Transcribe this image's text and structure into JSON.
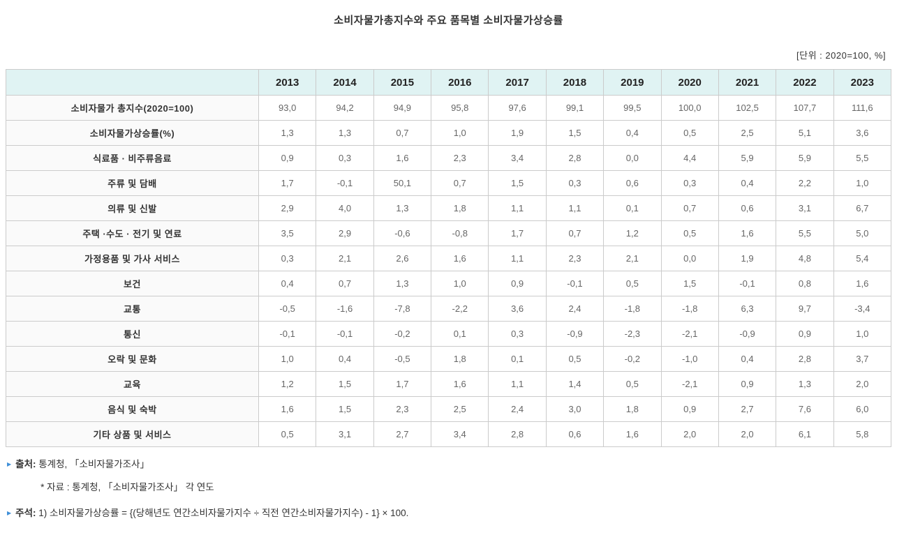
{
  "page": {
    "title": "소비자물가총지수와 주요 품목별 소비자물가상승률",
    "unit_label": "[단위 : 2020=100, %]"
  },
  "table": {
    "corner_label": "",
    "years": [
      "2013",
      "2014",
      "2015",
      "2016",
      "2017",
      "2018",
      "2019",
      "2020",
      "2021",
      "2022",
      "2023"
    ],
    "rows": [
      {
        "label": "소비자물가 총지수(2020=100)",
        "values": [
          "93,0",
          "94,2",
          "94,9",
          "95,8",
          "97,6",
          "99,1",
          "99,5",
          "100,0",
          "102,5",
          "107,7",
          "111,6"
        ]
      },
      {
        "label": "소비자물가상승률(%)",
        "values": [
          "1,3",
          "1,3",
          "0,7",
          "1,0",
          "1,9",
          "1,5",
          "0,4",
          "0,5",
          "2,5",
          "5,1",
          "3,6"
        ]
      },
      {
        "label": "식료품 · 비주류음료",
        "values": [
          "0,9",
          "0,3",
          "1,6",
          "2,3",
          "3,4",
          "2,8",
          "0,0",
          "4,4",
          "5,9",
          "5,9",
          "5,5"
        ]
      },
      {
        "label": "주류 및 담배",
        "values": [
          "1,7",
          "-0,1",
          "50,1",
          "0,7",
          "1,5",
          "0,3",
          "0,6",
          "0,3",
          "0,4",
          "2,2",
          "1,0"
        ]
      },
      {
        "label": "의류 및 신발",
        "values": [
          "2,9",
          "4,0",
          "1,3",
          "1,8",
          "1,1",
          "1,1",
          "0,1",
          "0,7",
          "0,6",
          "3,1",
          "6,7"
        ]
      },
      {
        "label": "주택 ·수도 · 전기 및 연료",
        "values": [
          "3,5",
          "2,9",
          "-0,6",
          "-0,8",
          "1,7",
          "0,7",
          "1,2",
          "0,5",
          "1,6",
          "5,5",
          "5,0"
        ]
      },
      {
        "label": "가정용품 및 가사 서비스",
        "values": [
          "0,3",
          "2,1",
          "2,6",
          "1,6",
          "1,1",
          "2,3",
          "2,1",
          "0,0",
          "1,9",
          "4,8",
          "5,4"
        ]
      },
      {
        "label": "보건",
        "values": [
          "0,4",
          "0,7",
          "1,3",
          "1,0",
          "0,9",
          "-0,1",
          "0,5",
          "1,5",
          "-0,1",
          "0,8",
          "1,6"
        ]
      },
      {
        "label": "교통",
        "values": [
          "-0,5",
          "-1,6",
          "-7,8",
          "-2,2",
          "3,6",
          "2,4",
          "-1,8",
          "-1,8",
          "6,3",
          "9,7",
          "-3,4"
        ]
      },
      {
        "label": "통신",
        "values": [
          "-0,1",
          "-0,1",
          "-0,2",
          "0,1",
          "0,3",
          "-0,9",
          "-2,3",
          "-2,1",
          "-0,9",
          "0,9",
          "1,0"
        ]
      },
      {
        "label": "오락 및 문화",
        "values": [
          "1,0",
          "0,4",
          "-0,5",
          "1,8",
          "0,1",
          "0,5",
          "-0,2",
          "-1,0",
          "0,4",
          "2,8",
          "3,7"
        ]
      },
      {
        "label": "교육",
        "values": [
          "1,2",
          "1,5",
          "1,7",
          "1,6",
          "1,1",
          "1,4",
          "0,5",
          "-2,1",
          "0,9",
          "1,3",
          "2,0"
        ]
      },
      {
        "label": "음식 및 숙박",
        "values": [
          "1,6",
          "1,5",
          "2,3",
          "2,5",
          "2,4",
          "3,0",
          "1,8",
          "0,9",
          "2,7",
          "7,6",
          "6,0"
        ]
      },
      {
        "label": "기타 상품 및 서비스",
        "values": [
          "0,5",
          "3,1",
          "2,7",
          "3,4",
          "2,8",
          "0,6",
          "1,6",
          "2,0",
          "2,0",
          "6,1",
          "5,8"
        ]
      }
    ]
  },
  "chart_data": {
    "type": "table",
    "title": "소비자물가총지수와 주요 품목별 소비자물가상승률",
    "unit": "2020=100, %",
    "columns": [
      2013,
      2014,
      2015,
      2016,
      2017,
      2018,
      2019,
      2020,
      2021,
      2022,
      2023
    ],
    "series": [
      {
        "name": "소비자물가 총지수(2020=100)",
        "values": [
          93.0,
          94.2,
          94.9,
          95.8,
          97.6,
          99.1,
          99.5,
          100.0,
          102.5,
          107.7,
          111.6
        ]
      },
      {
        "name": "소비자물가상승률(%)",
        "values": [
          1.3,
          1.3,
          0.7,
          1.0,
          1.9,
          1.5,
          0.4,
          0.5,
          2.5,
          5.1,
          3.6
        ]
      },
      {
        "name": "식료품 · 비주류음료",
        "values": [
          0.9,
          0.3,
          1.6,
          2.3,
          3.4,
          2.8,
          0.0,
          4.4,
          5.9,
          5.9,
          5.5
        ]
      },
      {
        "name": "주류 및 담배",
        "values": [
          1.7,
          -0.1,
          50.1,
          0.7,
          1.5,
          0.3,
          0.6,
          0.3,
          0.4,
          2.2,
          1.0
        ]
      },
      {
        "name": "의류 및 신발",
        "values": [
          2.9,
          4.0,
          1.3,
          1.8,
          1.1,
          1.1,
          0.1,
          0.7,
          0.6,
          3.1,
          6.7
        ]
      },
      {
        "name": "주택 ·수도 · 전기 및 연료",
        "values": [
          3.5,
          2.9,
          -0.6,
          -0.8,
          1.7,
          0.7,
          1.2,
          0.5,
          1.6,
          5.5,
          5.0
        ]
      },
      {
        "name": "가정용품 및 가사 서비스",
        "values": [
          0.3,
          2.1,
          2.6,
          1.6,
          1.1,
          2.3,
          2.1,
          0.0,
          1.9,
          4.8,
          5.4
        ]
      },
      {
        "name": "보건",
        "values": [
          0.4,
          0.7,
          1.3,
          1.0,
          0.9,
          -0.1,
          0.5,
          1.5,
          -0.1,
          0.8,
          1.6
        ]
      },
      {
        "name": "교통",
        "values": [
          -0.5,
          -1.6,
          -7.8,
          -2.2,
          3.6,
          2.4,
          -1.8,
          -1.8,
          6.3,
          9.7,
          -3.4
        ]
      },
      {
        "name": "통신",
        "values": [
          -0.1,
          -0.1,
          -0.2,
          0.1,
          0.3,
          -0.9,
          -2.3,
          -2.1,
          -0.9,
          0.9,
          1.0
        ]
      },
      {
        "name": "오락 및 문화",
        "values": [
          1.0,
          0.4,
          -0.5,
          1.8,
          0.1,
          0.5,
          -0.2,
          -1.0,
          0.4,
          2.8,
          3.7
        ]
      },
      {
        "name": "교육",
        "values": [
          1.2,
          1.5,
          1.7,
          1.6,
          1.1,
          1.4,
          0.5,
          -2.1,
          0.9,
          1.3,
          2.0
        ]
      },
      {
        "name": "음식 및 숙박",
        "values": [
          1.6,
          1.5,
          2.3,
          2.5,
          2.4,
          3.0,
          1.8,
          0.9,
          2.7,
          7.6,
          6.0
        ]
      },
      {
        "name": "기타 상품 및 서비스",
        "values": [
          0.5,
          3.1,
          2.7,
          3.4,
          2.8,
          0.6,
          1.6,
          2.0,
          2.0,
          6.1,
          5.8
        ]
      }
    ]
  },
  "footnotes": {
    "source_label": "출처:",
    "source_text": "통계청, 「소비자물가조사」",
    "source_sub": "* 자료 : 통계청, 「소비자물가조사」 각 연도",
    "note_label": "주석:",
    "note_text": "1) 소비자물가상승률 = {(당해년도 연간소비자물가지수 ÷ 직전 연간소비자물가지수) - 1} × 100."
  },
  "icons": {
    "bullet": "▶"
  },
  "colors": {
    "header_bg": "#e0f3f3",
    "label_bg": "#fafafa",
    "border": "#cbcbcb",
    "bullet_blue": "#4090d8",
    "value_text": "#666666",
    "label_text": "#333333"
  }
}
